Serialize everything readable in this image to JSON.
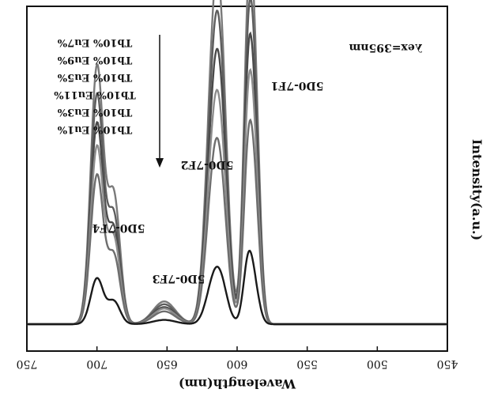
{
  "chart_data": {
    "type": "line",
    "xlabel": "Wavelength(nm)",
    "ylabel": "Intensity(a.u.)",
    "xlim": [
      750,
      450
    ],
    "ylim": [
      0,
      1
    ],
    "x_ticks": [
      "750",
      "700",
      "650",
      "600",
      "550",
      "500",
      "450"
    ],
    "x_tick_values": [
      750,
      700,
      650,
      600,
      550,
      500,
      450
    ],
    "excitation_label": "λex=395nm",
    "legend": [
      "Tb10% Eu7%",
      "Tb10% Eu9%",
      "Tb10% Eu5%",
      "Tb10% Eu11%",
      "Tb10% Eu3%",
      "Tb10% Eu1%"
    ],
    "annotations": [
      {
        "text": "5D0-7F4",
        "x": 698
      },
      {
        "text": "5D0-7F3",
        "x": 651
      },
      {
        "text": "5D0-7F2",
        "x": 614
      },
      {
        "text": "5D0-7F1",
        "x": 590
      }
    ],
    "series": [
      {
        "name": "Tb10% Eu7%",
        "color": "#7a7a7a",
        "peaks": [
          0.9,
          0.45,
          0.08,
          0.62,
          0.86,
          1.0,
          0.64
        ]
      },
      {
        "name": "Tb10% Eu9%",
        "color": "#5e5e5e",
        "peaks": [
          0.8,
          0.38,
          0.07,
          0.55,
          0.76,
          0.88,
          0.57
        ]
      },
      {
        "name": "Tb10% Eu5%",
        "color": "#4a4a4a",
        "peaks": [
          0.7,
          0.33,
          0.06,
          0.48,
          0.67,
          0.8,
          0.48
        ]
      },
      {
        "name": "Tb10% Eu11%",
        "color": "#8c8c8c",
        "peaks": [
          0.62,
          0.3,
          0.055,
          0.42,
          0.56,
          0.7,
          0.42
        ]
      },
      {
        "name": "Tb10% Eu3%",
        "color": "#6e6e6e",
        "peaks": [
          0.52,
          0.24,
          0.045,
          0.34,
          0.44,
          0.56,
          0.34
        ]
      },
      {
        "name": "Tb10% Eu1%",
        "color": "#1a1a1a",
        "peaks": [
          0.16,
          0.08,
          0.015,
          0.1,
          0.14,
          0.22,
          0.09
        ]
      }
    ],
    "peak_positions_nm": [
      700,
      688,
      652,
      618,
      612,
      592,
      587
    ]
  }
}
